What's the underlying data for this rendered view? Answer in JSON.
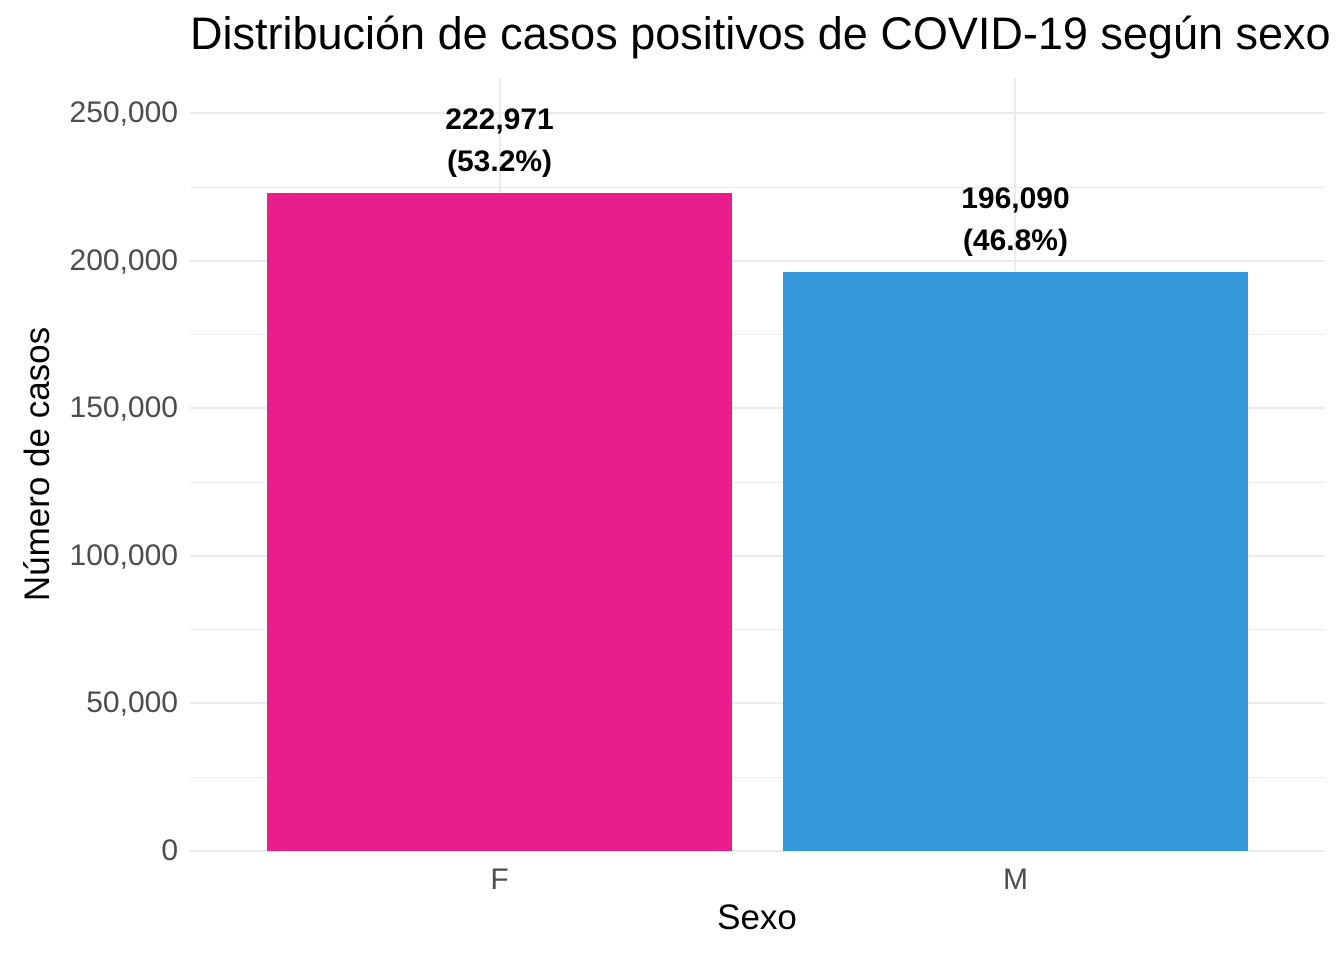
{
  "chart_data": {
    "type": "bar",
    "title": "Distribución de casos positivos de COVID-19 según sexo",
    "xlabel": "Sexo",
    "ylabel": "Número de casos",
    "categories": [
      "F",
      "M"
    ],
    "values": [
      222971,
      196090
    ],
    "value_labels": [
      "222,971",
      "196,090"
    ],
    "pct_labels": [
      "(53.2%)",
      "(46.8%)"
    ],
    "bar_colors": [
      "#E91E8C",
      "#3498DB"
    ],
    "ylim": [
      0,
      262000
    ],
    "yticks": [
      0,
      50000,
      100000,
      150000,
      200000,
      250000
    ],
    "ytick_labels": [
      "0",
      "50,000",
      "100,000",
      "150,000",
      "200,000",
      "250,000"
    ],
    "minor_yticks": [
      25000,
      75000,
      125000,
      175000,
      225000
    ],
    "grid": true,
    "legend": "none",
    "background_color": "#FFFFFF",
    "grid_color": "#EBEBEB",
    "tick_label_color": "#4D4D4D",
    "text_color": "#000000"
  }
}
